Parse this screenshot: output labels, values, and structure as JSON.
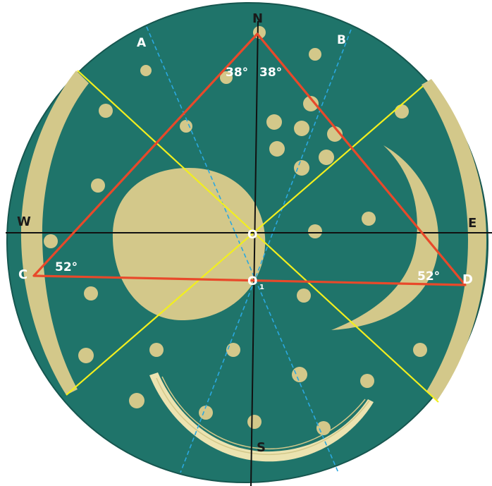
{
  "colors": {
    "disc": "#1f746a",
    "disc_edge": "#16564f",
    "gold": "#d3c88a",
    "gold_light": "#ece3b0",
    "triangle": "#e8492a",
    "yellow_lines": "#f2ef1e",
    "dashed_lines": "#2aa8e0",
    "axes": "#111111",
    "label_dark": "#1a1a1a",
    "label_light": "#ffffff"
  },
  "labels": {
    "north": "N",
    "south": "S",
    "west": "W",
    "east": "E",
    "point_a": "A",
    "point_b": "B",
    "point_c": "C",
    "point_d": "D",
    "center": "O",
    "center_sub": "O",
    "center_sub_index": "1"
  },
  "angles": {
    "apex_left": "38°",
    "apex_right": "38°",
    "base_left": "52°",
    "base_right": "52°"
  }
}
